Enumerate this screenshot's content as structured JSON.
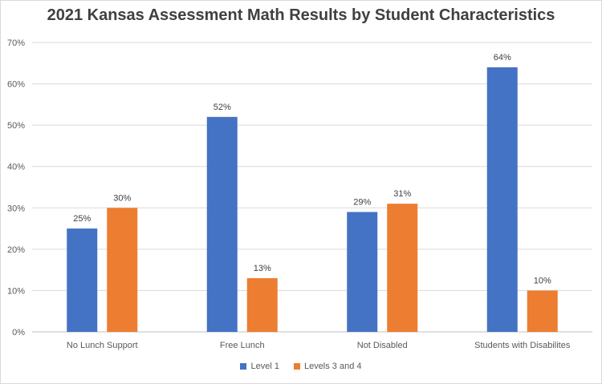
{
  "chart_data": {
    "type": "bar",
    "title": "2021 Kansas Assessment Math Results by Student Characteristics",
    "categories": [
      "No Lunch Support",
      "Free Lunch",
      "Not Disabled",
      "Students with Disabilites"
    ],
    "series": [
      {
        "name": "Level 1",
        "values": [
          25,
          52,
          29,
          64
        ],
        "color": "#4472c4"
      },
      {
        "name": "Levels 3 and 4",
        "values": [
          30,
          13,
          31,
          10
        ],
        "color": "#ed7d31"
      }
    ],
    "ylim": [
      0,
      70
    ],
    "yticks": [
      0,
      10,
      20,
      30,
      40,
      50,
      60,
      70
    ],
    "ytick_suffix": "%",
    "grid": true,
    "legend": "bottom",
    "xlabel": "",
    "ylabel": ""
  }
}
